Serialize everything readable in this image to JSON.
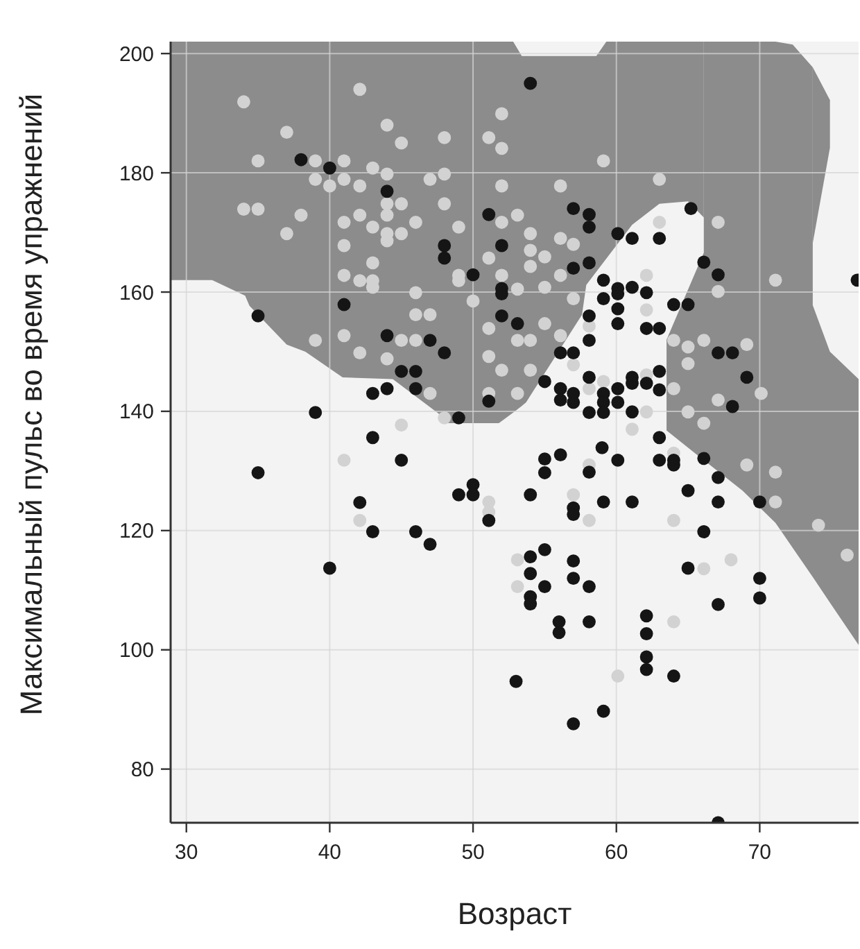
{
  "chart_data": {
    "type": "scatter",
    "xlabel": "Возраст",
    "ylabel": "Максимальный пульс во время упражнений",
    "xlim": [
      28.9,
      76.9
    ],
    "ylim": [
      71,
      202
    ],
    "xticks": [
      30,
      40,
      50,
      60,
      70
    ],
    "yticks": [
      80,
      100,
      120,
      140,
      160,
      180,
      200
    ],
    "grid": true,
    "marker": "circle",
    "series": [
      {
        "type": "line",
        "marker": "none",
        "color": "#8c8c8c",
        "x": [
          28.9,
          31.8,
          34.1,
          34.4,
          37,
          38.3,
          40.9,
          44.4,
          47.6,
          48.2,
          51.8,
          52.8,
          53.4,
          53.7,
          57.6,
          57.9,
          58.6,
          59.3,
          61.1,
          63.0,
          65.0,
          66.1
        ],
        "values": [
          null,
          null,
          null,
          null,
          null,
          null,
          null,
          null,
          null,
          null,
          null,
          null,
          null,
          null,
          null,
          null,
          null,
          null,
          null,
          null,
          null,
          null
        ],
        "upper": [
          202,
          202,
          202,
          202,
          202,
          202,
          202,
          202,
          202,
          202,
          202,
          202,
          199.6,
          199.6,
          199.6,
          199.6,
          199.6,
          202,
          202,
          202,
          202,
          202
        ],
        "lower": [
          162,
          162,
          159.4,
          157.7,
          151.2,
          150,
          145.7,
          145.4,
          139.6,
          138,
          138,
          139.8,
          140.9,
          141.5,
          156.2,
          161.2,
          163.4,
          165.6,
          171.3,
          174.8,
          175.2,
          172.5
        ]
      },
      {
        "type": "line",
        "marker": "none",
        "color": "#8c8c8c",
        "x": [
          63.5,
          66.1,
          66.1,
          68.8,
          71.1,
          72.3,
          73.7,
          73.7,
          74.9,
          76.9
        ],
        "values": [
          null,
          null,
          null,
          null,
          null,
          null,
          null,
          null,
          null,
          null
        ],
        "upper": [
          152,
          166.6,
          202,
          202,
          202,
          201.5,
          197.7,
          157.8,
          150,
          145.4
        ],
        "lower": [
          136.8,
          131.8,
          131.8,
          126.7,
          121.3,
          117.1,
          112.2,
          112.2,
          107.9,
          100.8
        ]
      },
      {
        "type": "line",
        "marker": "none",
        "color": "#8c8c8c",
        "x": [
          73.7,
          74.9
        ],
        "values": [
          null,
          null
        ],
        "upper": [
          197.7,
          192.2
        ],
        "lower": [
          168.2,
          184.2
        ]
      },
      {
        "color": "#d2d2d2",
        "x": [
          34.0,
          42.1,
          37.0,
          35.0,
          39.0,
          41.0,
          39.0,
          40.0,
          41.0,
          42.1,
          43.0,
          44.0,
          44.0,
          45.0,
          44.0,
          34.0,
          35.0,
          38.0,
          42.1,
          41.0,
          43.0,
          44.0,
          44.0,
          45.0,
          46.0,
          37.0,
          41.0,
          43.0,
          41.0,
          42.1,
          43.0,
          43.0,
          46.0,
          44.0,
          45.0,
          48.0,
          48.0,
          47.0,
          48.0,
          49.0,
          51.1,
          52.0,
          52.0,
          52.0,
          52.0,
          51.1,
          49.0,
          49.0,
          50.0,
          52.0,
          59.1,
          56.1,
          63.0,
          53.1,
          67.1,
          71.1,
          62.1,
          63.0,
          56.1,
          54.0,
          55.0,
          54.0,
          54.0,
          57.0,
          53.1,
          55.0,
          56.1,
          57.0,
          67.1,
          39.0,
          41.0,
          42.1,
          44.0,
          45.0,
          46.0,
          46.0,
          47.0,
          47.0,
          48.0,
          51.1,
          51.1,
          52.0,
          51.1,
          45.0,
          41.0,
          42.1,
          51.1,
          51.1,
          54.0,
          55.0,
          53.1,
          54.0,
          53.1,
          56.1,
          57.0,
          58.1,
          62.1,
          58.1,
          59.1,
          62.1,
          61.1,
          62.1,
          64.0,
          65.0,
          66.1,
          69.1,
          65.0,
          64.0,
          67.1,
          70.1,
          65.0,
          66.1,
          69.1,
          71.1,
          71.1,
          74.1,
          76.1,
          64.0,
          58.1,
          57.0,
          58.1,
          64.0,
          68.0,
          53.1,
          53.1,
          64.0,
          60.1,
          66.1
        ],
        "values": [
          191.9,
          194,
          186.8,
          182,
          182,
          182,
          178.9,
          177.8,
          178.9,
          177.8,
          180.8,
          179.8,
          174.8,
          174.8,
          172.9,
          173.9,
          173.9,
          172.9,
          172.9,
          171.7,
          170.9,
          169.8,
          168.6,
          169.8,
          171.7,
          169.8,
          167.8,
          164.9,
          162.8,
          161.9,
          161.9,
          160.8,
          159.9,
          188,
          185,
          185.9,
          179.8,
          178.9,
          174.8,
          170.9,
          185.9,
          189.9,
          184.1,
          177.8,
          171.7,
          165.7,
          162.8,
          161.9,
          158.5,
          162.8,
          182,
          177.8,
          178.9,
          172.9,
          171.7,
          162,
          162.8,
          171.7,
          169,
          169.8,
          165.9,
          167,
          164.3,
          168,
          160.5,
          160.8,
          162.8,
          158.9,
          160.1,
          151.9,
          152.7,
          149.8,
          148.8,
          151.9,
          151.9,
          156.2,
          156.2,
          143,
          138.9,
          153.9,
          149.2,
          146.9,
          143,
          137.7,
          131.8,
          121.7,
          124.8,
          123.1,
          151.9,
          154.7,
          151.9,
          146.9,
          143,
          152.7,
          147.8,
          154.3,
          157,
          143.8,
          145,
          146.1,
          137,
          139.9,
          151.9,
          150.8,
          151.9,
          151.2,
          148,
          143.8,
          141.9,
          143,
          139.9,
          138,
          131,
          129.8,
          124.8,
          120.9,
          115.9,
          133,
          131,
          126,
          121.7,
          121.7,
          115.1,
          115.1,
          110.6,
          104.7,
          95.6,
          113.6
        ]
      },
      {
        "color": "#151515",
        "x": [
          38.0,
          40.0,
          44.0,
          51.1,
          48.0,
          48.0,
          52.0,
          50.0,
          52.0,
          52.0,
          41.0,
          54.0,
          57.0,
          58.1,
          58.1,
          60.1,
          61.1,
          63.0,
          65.2,
          66.1,
          67.1,
          57.0,
          58.1,
          59.1,
          60.1,
          60.1,
          61.1,
          62.1,
          59.1,
          64.0,
          65.0,
          60.1,
          35.0,
          44.0,
          47.0,
          48.0,
          52.0,
          45.0,
          46.0,
          46.0,
          44.0,
          43.0,
          51.1,
          49.0,
          39.0,
          43.0,
          45.0,
          35.0,
          50.0,
          50.0,
          49.0,
          51.1,
          42.1,
          43.0,
          46.0,
          47.0,
          40.0,
          53.1,
          58.1,
          60.1,
          62.1,
          63.0,
          58.1,
          57.0,
          56.1,
          55.0,
          58.1,
          61.1,
          61.1,
          62.1,
          63.0,
          63.0,
          67.1,
          68.1,
          69.1,
          68.1,
          56.1,
          56.1,
          57.0,
          57.0,
          59.1,
          59.1,
          59.1,
          60.1,
          60.1,
          58.1,
          61.1,
          63.0,
          63.0,
          64.0,
          64.0,
          66.1,
          59.0,
          60.1,
          56.1,
          55.0,
          55.0,
          58.1,
          67.1,
          65.0,
          67.1,
          70.0,
          54.0,
          57.0,
          57.0,
          59.1,
          61.1,
          66.1,
          54.0,
          55.0,
          57.0,
          54.0,
          57.0,
          65.0,
          70.0,
          54.0,
          54.0,
          55.0,
          58.1,
          56.0,
          56.0,
          58.1,
          62.1,
          62.1,
          62.1,
          62.1,
          64.0,
          67.1,
          70.0,
          53.0,
          59.1,
          57.0,
          67.1,
          76.8
        ],
        "values": [
          182.2,
          180.8,
          176.9,
          173,
          167.8,
          165.7,
          167.8,
          162.9,
          160.6,
          159.7,
          157.9,
          195,
          174,
          173,
          170.9,
          169.8,
          169,
          169,
          174,
          165,
          162.9,
          164,
          164.9,
          162,
          160.6,
          159.7,
          160.8,
          159.9,
          158.9,
          157.9,
          157.9,
          157.2,
          156,
          152.7,
          151.9,
          149.8,
          156,
          146.7,
          146.7,
          143.8,
          143.8,
          143,
          141.7,
          138.9,
          139.8,
          135.6,
          131.8,
          129.7,
          127.7,
          126,
          126,
          121.7,
          124.7,
          119.8,
          119.8,
          117.7,
          113.7,
          154.7,
          156,
          154.7,
          153.9,
          153.9,
          151.9,
          149.8,
          149.8,
          145,
          145.7,
          145.7,
          144.7,
          144.7,
          146.7,
          143.6,
          149.8,
          149.8,
          145.7,
          140.8,
          143.8,
          141.9,
          143,
          141.5,
          143,
          141.5,
          139.8,
          143.8,
          141.5,
          139.8,
          139.9,
          135.6,
          131.8,
          131.8,
          131,
          132.1,
          133.9,
          131.8,
          132.7,
          132,
          129.7,
          129.8,
          128.9,
          126.7,
          124.8,
          124.8,
          126,
          123.8,
          122.7,
          124.8,
          124.8,
          119.8,
          115.6,
          116.8,
          114.9,
          112.8,
          112,
          113.7,
          112,
          108.9,
          107.7,
          110.6,
          110.6,
          104.7,
          102.9,
          104.7,
          105.7,
          102.7,
          98.8,
          96.7,
          95.6,
          107.6,
          108.7,
          94.7,
          89.7,
          87.6,
          71,
          162
        ]
      }
    ]
  }
}
